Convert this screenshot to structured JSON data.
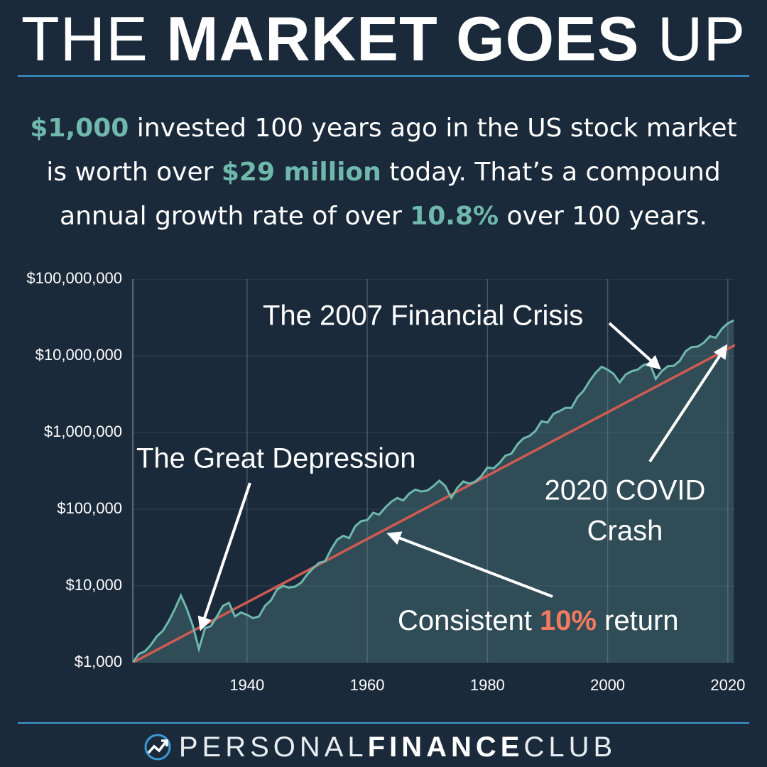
{
  "chart_data": {
    "type": "line",
    "title": [
      "THE",
      "MARKET GOES",
      "UP"
    ],
    "subtitle": [
      [
        {
          "text": "$1,000",
          "highlight": true
        },
        {
          "text": " invested 100 years ago in the US stock market"
        }
      ],
      [
        {
          "text": "is worth over "
        },
        {
          "text": "$29 million",
          "highlight": true
        },
        {
          "text": " today. That’s a compound"
        }
      ],
      [
        {
          "text": "annual growth rate of over "
        },
        {
          "text": "10.8%",
          "highlight": true
        },
        {
          "text": " over 100 years."
        }
      ]
    ],
    "highlight_color": "#6fb8ab",
    "log_y": true,
    "grid": true,
    "xlim": [
      1921,
      2021.2
    ],
    "xticks": [
      1940,
      1960,
      1980,
      2000,
      2020
    ],
    "ylim": [
      1000,
      100000000
    ],
    "yticks": [
      {
        "value": 1000,
        "label": "$1,000"
      },
      {
        "value": 10000,
        "label": "$10,000"
      },
      {
        "value": 100000,
        "label": "$100,000"
      },
      {
        "value": 1000000,
        "label": "$1,000,000"
      },
      {
        "value": 10000000,
        "label": "$10,000,000"
      },
      {
        "value": 100000000,
        "label": "$100,000,000"
      }
    ],
    "series": [
      {
        "color": "#6fb8ab",
        "fill": "#2f4c57",
        "x": [
          1921,
          1922,
          1923,
          1924,
          1925,
          1926,
          1927,
          1928,
          1929,
          1930,
          1931,
          1932,
          1933,
          1934,
          1935,
          1936,
          1937,
          1938,
          1939,
          1940,
          1941,
          1942,
          1943,
          1944,
          1945,
          1946,
          1947,
          1948,
          1949,
          1950,
          1951,
          1952,
          1953,
          1954,
          1955,
          1956,
          1957,
          1958,
          1959,
          1960,
          1961,
          1962,
          1963,
          1964,
          1965,
          1966,
          1967,
          1968,
          1969,
          1970,
          1971,
          1972,
          1973,
          1974,
          1975,
          1976,
          1977,
          1978,
          1979,
          1980,
          1981,
          1982,
          1983,
          1984,
          1985,
          1986,
          1987,
          1988,
          1989,
          1990,
          1991,
          1992,
          1993,
          1994,
          1995,
          1996,
          1997,
          1998,
          1999,
          2000,
          2001,
          2002,
          2003,
          2004,
          2005,
          2006,
          2007,
          2008,
          2009,
          2010,
          2011,
          2012,
          2013,
          2014,
          2015,
          2016,
          2017,
          2018,
          2019,
          2020,
          2021
        ],
        "values": [
          1000,
          1300,
          1400,
          1700,
          2200,
          2600,
          3500,
          5000,
          7500,
          5000,
          3000,
          1500,
          2800,
          3000,
          4000,
          5500,
          6000,
          4000,
          4500,
          4200,
          3800,
          4000,
          5500,
          6500,
          9000,
          10000,
          9500,
          9800,
          11000,
          14000,
          17000,
          20000,
          21000,
          30000,
          40000,
          45000,
          42000,
          60000,
          70000,
          72000,
          90000,
          85000,
          105000,
          125000,
          140000,
          130000,
          160000,
          180000,
          170000,
          175000,
          200000,
          235000,
          200000,
          140000,
          190000,
          230000,
          215000,
          230000,
          270000,
          350000,
          340000,
          400000,
          500000,
          530000,
          700000,
          840000,
          900000,
          1050000,
          1400000,
          1350000,
          1750000,
          1900000,
          2100000,
          2100000,
          2900000,
          3500000,
          4700000,
          6000000,
          7200000,
          6600000,
          5800000,
          4500000,
          5700000,
          6300000,
          6600000,
          7600000,
          8000000,
          5000000,
          6300000,
          7300000,
          7400000,
          8600000,
          11500000,
          13000000,
          13200000,
          14800000,
          18000000,
          17200000,
          22500000,
          26500000,
          29000000
        ]
      },
      {
        "color": "#cf5b52",
        "x": [
          1921,
          2021.2
        ],
        "values": [
          1000,
          13800000
        ]
      }
    ],
    "annotations": [
      {
        "lines": [
          "The 2007 Financial Crisis"
        ]
      },
      {
        "lines": [
          "The Great Depression"
        ]
      },
      {
        "lines": [
          "2020 COVID",
          "Crash"
        ]
      },
      {
        "parts": [
          {
            "text": "Consistent"
          },
          {
            "text": "10%",
            "color": "#f47a5f"
          },
          {
            "text": "return"
          }
        ]
      }
    ]
  },
  "footer": [
    "PERSONAL",
    "FINANCE",
    "CLUB"
  ]
}
